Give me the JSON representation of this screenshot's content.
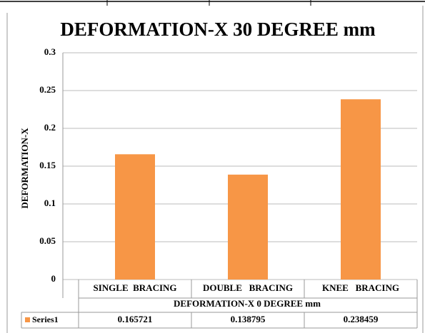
{
  "chart_data": {
    "type": "bar",
    "title": "DEFORMATION-X 30 DEGREE mm",
    "y_label": "DEFORMATION-X",
    "x_label": "DEFORMATION-X 0 DEGREE mm",
    "categories": [
      "SINGLE  BRACING",
      "DOUBLE   BRACING",
      "KNEE   BRACING"
    ],
    "series": [
      {
        "name": "Series1",
        "color": "#f79646",
        "values": [
          0.165721,
          0.138795,
          0.238459
        ]
      }
    ],
    "ylim": [
      0,
      0.3
    ],
    "yticks": [
      0,
      0.05,
      0.1,
      0.15,
      0.2,
      0.25,
      0.3
    ],
    "grid": true
  }
}
